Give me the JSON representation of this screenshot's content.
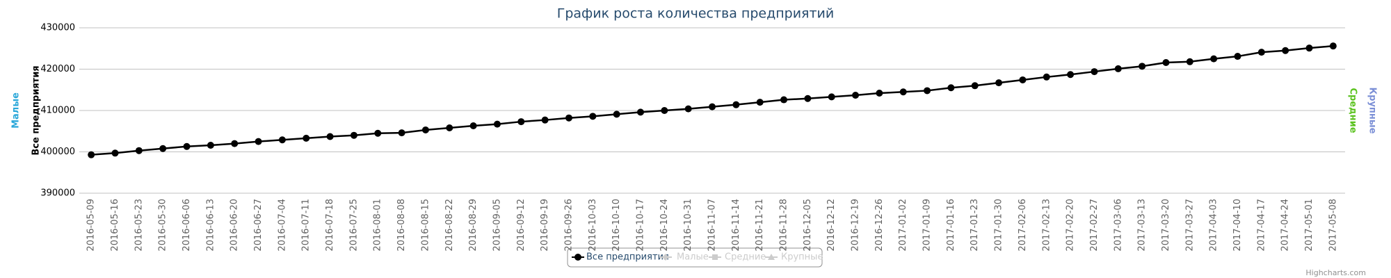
{
  "chart_data": {
    "type": "line",
    "title": "График роста количества предприятий",
    "categories": [
      "2016-05-09",
      "2016-05-16",
      "2016-05-23",
      "2016-05-30",
      "2016-06-06",
      "2016-06-13",
      "2016-06-20",
      "2016-06-27",
      "2016-07-04",
      "2016-07-11",
      "2016-07-18",
      "2016-07-25",
      "2016-08-01",
      "2016-08-08",
      "2016-08-15",
      "2016-08-22",
      "2016-08-29",
      "2016-09-05",
      "2016-09-12",
      "2016-09-19",
      "2016-09-26",
      "2016-10-03",
      "2016-10-10",
      "2016-10-17",
      "2016-10-24",
      "2016-10-31",
      "2016-11-07",
      "2016-11-14",
      "2016-11-21",
      "2016-11-28",
      "2016-12-05",
      "2016-12-12",
      "2016-12-19",
      "2016-12-26",
      "2017-01-02",
      "2017-01-09",
      "2017-01-16",
      "2017-01-23",
      "2017-01-30",
      "2017-02-06",
      "2017-02-13",
      "2017-02-20",
      "2017-02-27",
      "2017-03-06",
      "2017-03-13",
      "2017-03-20",
      "2017-03-27",
      "2017-04-03",
      "2017-04-10",
      "2017-04-17",
      "2017-04-24",
      "2017-05-01",
      "2017-05-08"
    ],
    "series": [
      {
        "name": "Все предприятия",
        "color": "#000000",
        "visible": true,
        "values": [
          399300,
          399700,
          400300,
          400800,
          401300,
          401600,
          402000,
          402500,
          402900,
          403300,
          403700,
          404000,
          404500,
          404600,
          405300,
          405800,
          406300,
          406700,
          407300,
          407700,
          408200,
          408600,
          409100,
          409600,
          410000,
          410400,
          410900,
          411400,
          412000,
          412600,
          412900,
          413300,
          413700,
          414200,
          414500,
          414800,
          415500,
          416000,
          416700,
          417400,
          418100,
          418700,
          419400,
          420100,
          420700,
          421600,
          421800,
          422500,
          423100,
          424100,
          424500,
          425100,
          425600
        ]
      },
      {
        "name": "Малые",
        "color": "#2aa7d9",
        "visible": false
      },
      {
        "name": "Средние",
        "color": "#5bc21f",
        "visible": false
      },
      {
        "name": "Крупные",
        "color": "#7b8fd6",
        "visible": false
      }
    ],
    "ylim": [
      390000,
      430000
    ],
    "yticks": [
      390000,
      400000,
      410000,
      420000,
      430000
    ],
    "grid": true,
    "credits": "Highcharts.com"
  }
}
